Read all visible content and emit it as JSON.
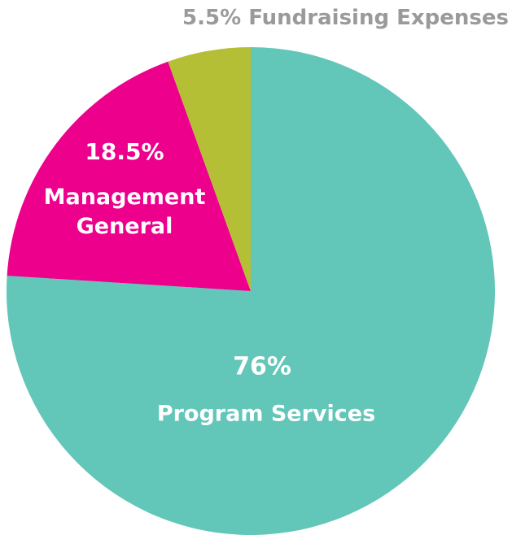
{
  "chart_data": {
    "type": "pie",
    "categories": [
      "Program Services",
      "Management General",
      "Fundraising Expenses"
    ],
    "values": [
      76,
      18.5,
      5.5
    ],
    "value_labels": [
      "76%",
      "18.5%",
      "5.5%"
    ],
    "colors": [
      "#62c6b9",
      "#ec008c",
      "#b5bf35"
    ]
  }
}
